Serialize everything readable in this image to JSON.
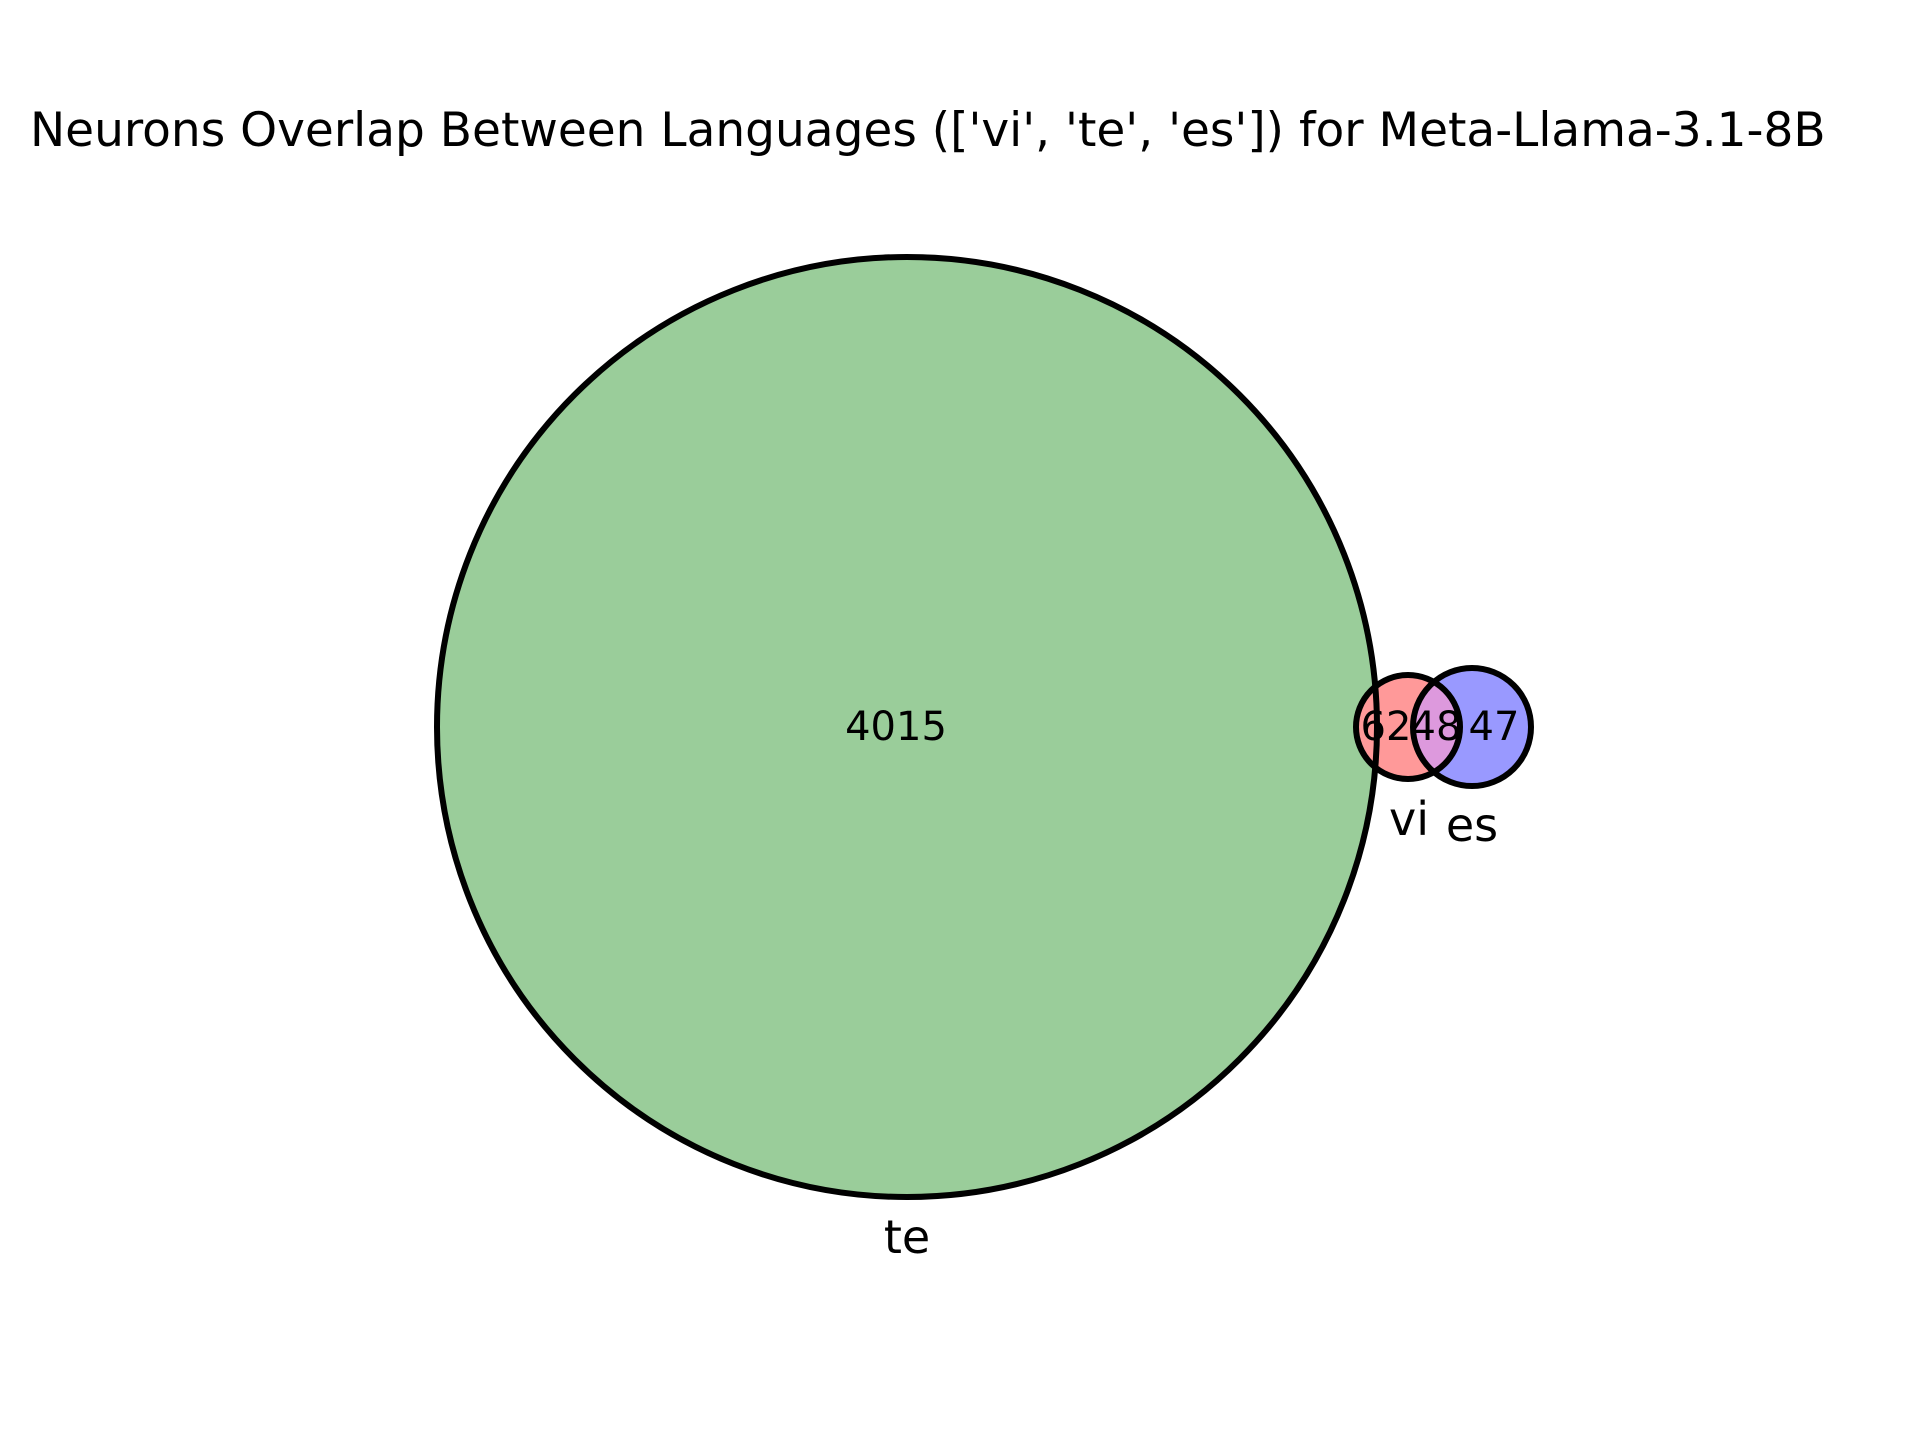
{
  "chart_data": {
    "type": "venn",
    "title": "Neurons Overlap Between Languages (['vi', 'te', 'es']) for Meta-Llama-3.1-8B",
    "sets": [
      {
        "name": "vi",
        "color": "#ff9999"
      },
      {
        "name": "te",
        "color": "#9acd9a"
      },
      {
        "name": "es",
        "color": "#9999ff"
      }
    ],
    "regions": [
      {
        "sets": [
          "te"
        ],
        "value": 4015
      },
      {
        "sets": [
          "vi"
        ],
        "value": 62
      },
      {
        "sets": [
          "vi",
          "es"
        ],
        "value": 48
      },
      {
        "sets": [
          "es"
        ],
        "value": 47
      }
    ],
    "overlap_color": "#dd99dd",
    "outline_color": "#000000"
  }
}
